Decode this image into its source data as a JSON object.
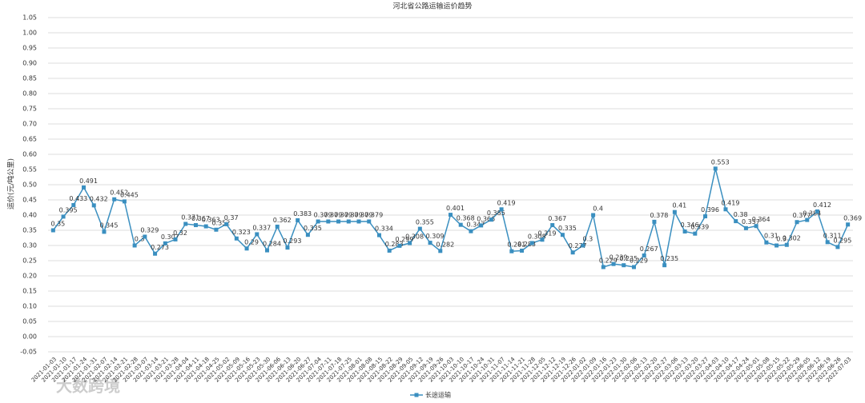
{
  "chart_data": {
    "type": "line",
    "title": "河北省公路运输运价趋势",
    "y_label": "运价(元/吨公里)",
    "watermark": "大数跨境",
    "categories": [
      "2021-01-03",
      "2021-01-10",
      "2021-01-17",
      "2021-01-24",
      "2021-01-31",
      "2021-02-07",
      "2021-02-14",
      "2021-02-21",
      "2021-02-28",
      "2021-03-07",
      "2021-03-14",
      "2021-03-21",
      "2021-03-28",
      "2021-04-04",
      "2021-04-11",
      "2021-04-18",
      "2021-04-25",
      "2021-05-02",
      "2021-05-09",
      "2021-05-16",
      "2021-05-23",
      "2021-05-30",
      "2021-06-06",
      "2021-06-13",
      "2021-06-20",
      "2021-06-27",
      "2021-07-04",
      "2021-07-11",
      "2021-07-18",
      "2021-07-25",
      "2021-08-01",
      "2021-08-08",
      "2021-08-15",
      "2021-08-22",
      "2021-08-29",
      "2021-09-05",
      "2021-09-12",
      "2021-09-19",
      "2021-09-26",
      "2021-10-03",
      "2021-10-10",
      "2021-10-17",
      "2021-10-24",
      "2021-10-31",
      "2021-11-07",
      "2021-11-14",
      "2021-11-21",
      "2021-11-28",
      "2021-12-05",
      "2021-12-12",
      "2021-12-19",
      "2021-12-26",
      "2022-01-02",
      "2022-01-09",
      "2022-01-16",
      "2022-01-23",
      "2022-01-30",
      "2022-02-06",
      "2022-02-13",
      "2022-02-20",
      "2022-02-27",
      "2022-03-06",
      "2022-03-13",
      "2022-03-20",
      "2022-03-27",
      "2022-04-03",
      "2022-04-10",
      "2022-04-17",
      "2022-04-24",
      "2022-05-01",
      "2022-05-08",
      "2022-05-15",
      "2022-05-22",
      "2022-05-29",
      "2022-06-05",
      "2022-06-12",
      "2022-06-19",
      "2022-06-26",
      "2022-07-03"
    ],
    "series": [
      {
        "name": "长途运输",
        "color": "#3a8fc0",
        "values": [
          0.35,
          0.395,
          0.433,
          0.491,
          0.432,
          0.345,
          0.452,
          0.445,
          0.3,
          0.329,
          0.273,
          0.307,
          0.32,
          0.371,
          0.367,
          0.363,
          0.352,
          0.37,
          0.323,
          0.29,
          0.337,
          0.284,
          0.362,
          0.293,
          0.383,
          0.335,
          0.379,
          0.379,
          0.379,
          0.379,
          0.379,
          0.379,
          0.334,
          0.283,
          0.299,
          0.308,
          0.355,
          0.309,
          0.282,
          0.401,
          0.368,
          0.347,
          0.366,
          0.385,
          0.419,
          0.281,
          0.283,
          0.308,
          0.319,
          0.367,
          0.335,
          0.277,
          0.3,
          0.4,
          0.229,
          0.239,
          0.235,
          0.229,
          0.267,
          0.378,
          0.235,
          0.41,
          0.346,
          0.339,
          0.396,
          0.553,
          0.419,
          0.38,
          0.357,
          0.364,
          0.31,
          0.3,
          0.302,
          0.377,
          0.384,
          0.412,
          0.311,
          0.295,
          0.369
        ]
      }
    ],
    "ylim": [
      -0.05,
      1.05
    ],
    "yticks": [
      -0.05,
      {
        "value": 0,
        "label": "0.00"
      },
      0.05,
      {
        "value": 0.1,
        "label": "0.10"
      },
      0.15,
      {
        "value": 0.2,
        "label": "0.20"
      },
      0.25,
      {
        "value": 0.3,
        "label": "0.30"
      },
      0.35,
      {
        "value": 0.4,
        "label": "0.40"
      },
      0.45,
      {
        "value": 0.5,
        "label": "0.50"
      },
      0.55,
      {
        "value": 0.6,
        "label": "0.60"
      },
      0.65,
      {
        "value": 0.7,
        "label": "0.70"
      },
      0.75,
      {
        "value": 0.8,
        "label": "0.80"
      },
      0.85,
      {
        "value": 0.9,
        "label": "0.90"
      },
      0.95,
      {
        "value": 1,
        "label": "1.00"
      },
      1.05
    ],
    "grid": true,
    "legend": "bottom"
  }
}
